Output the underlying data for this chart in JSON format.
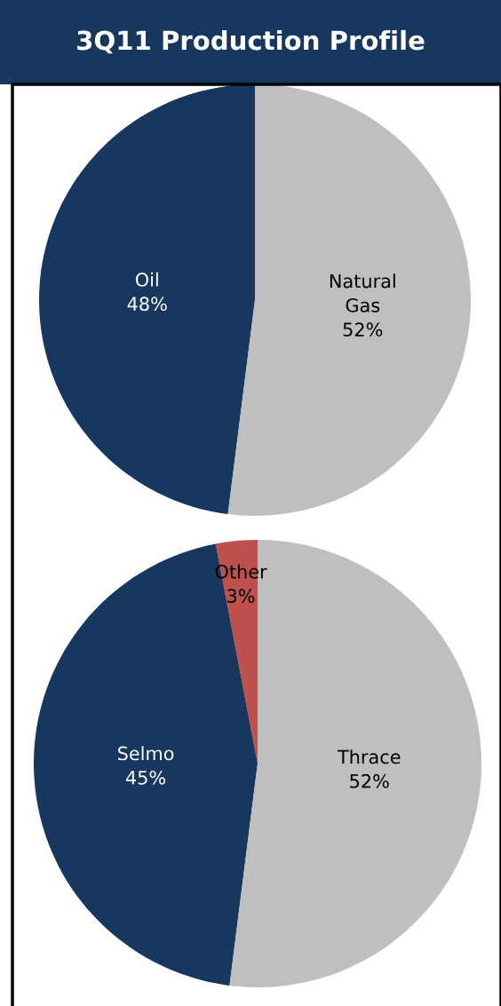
{
  "chart_data": [
    {
      "type": "pie",
      "title": "3Q11 Production Profile",
      "categories": [
        "Oil",
        "Natural Gas"
      ],
      "values": [
        48,
        52
      ],
      "colors": [
        "#17375e",
        "#bfbfbf"
      ],
      "value_labels": [
        "48%",
        "52%"
      ]
    },
    {
      "type": "pie",
      "categories": [
        "Other",
        "Selmo",
        "Thrace"
      ],
      "values": [
        3,
        45,
        52
      ],
      "colors": [
        "#c0504d",
        "#17375e",
        "#bfbfbf"
      ],
      "value_labels": [
        "3%",
        "45%",
        "52%"
      ]
    }
  ]
}
